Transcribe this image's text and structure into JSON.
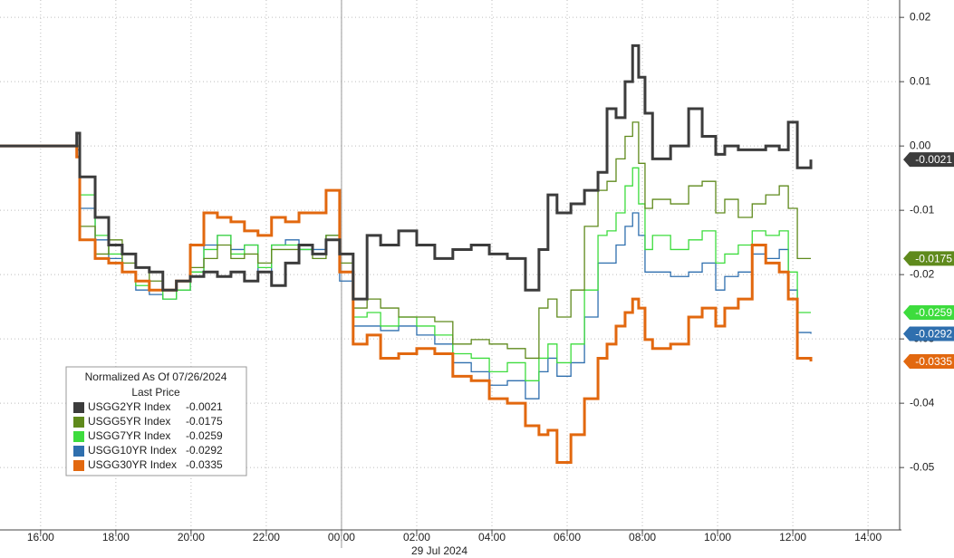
{
  "chart_data": {
    "type": "line",
    "legend_title": "Normalized As Of 07/26/2024",
    "legend_subtitle": "Last Price",
    "x_date_label": "29 Jul 2024",
    "x": [
      14.92,
      16.96,
      17.04,
      17.45,
      17.81,
      18.17,
      18.53,
      18.89,
      19.25,
      19.61,
      19.98,
      20.34,
      20.7,
      21.06,
      21.42,
      21.78,
      22.14,
      22.51,
      22.87,
      23.23,
      23.59,
      23.95,
      24.31,
      24.68,
      25.04,
      25.52,
      26.0,
      26.48,
      26.96,
      27.45,
      27.93,
      28.41,
      28.89,
      29.25,
      29.49,
      29.73,
      30.1,
      30.46,
      30.82,
      31.06,
      31.3,
      31.54,
      31.74,
      31.9,
      32.07,
      32.27,
      32.75,
      33.23,
      33.59,
      33.95,
      34.19,
      34.55,
      34.92,
      35.28,
      35.64,
      35.88,
      36.12,
      36.48
    ],
    "series": [
      {
        "name": "USGG2YR Index",
        "color": "#3c3c3c",
        "values": [
          0,
          0.002,
          -0.0048,
          -0.0111,
          -0.0154,
          -0.0168,
          -0.0189,
          -0.0196,
          -0.0224,
          -0.021,
          -0.0203,
          -0.0196,
          -0.0203,
          -0.0196,
          -0.021,
          -0.0196,
          -0.0217,
          -0.0182,
          -0.0154,
          -0.0168,
          -0.0146,
          -0.0168,
          -0.0238,
          -0.0139,
          -0.0154,
          -0.0132,
          -0.0154,
          -0.0175,
          -0.0161,
          -0.0154,
          -0.0168,
          -0.0175,
          -0.0224,
          -0.0161,
          -0.0076,
          -0.0104,
          -0.009,
          -0.0069,
          -0.0041,
          0.0058,
          0.0044,
          0.01,
          0.0156,
          0.0107,
          0.0051,
          -0.002,
          0,
          0.0058,
          0.0015,
          -0.0013,
          0,
          -0.0006,
          -0.0006,
          0,
          -0.0006,
          0.0037,
          -0.0034,
          -0.0021
        ]
      },
      {
        "name": "USGG5YR Index",
        "color": "#5f8a1c",
        "values": [
          0,
          0,
          -0.0125,
          -0.0168,
          -0.0146,
          -0.0182,
          -0.0189,
          -0.021,
          -0.0224,
          -0.021,
          -0.0189,
          -0.0175,
          -0.0154,
          -0.0175,
          -0.0168,
          -0.0182,
          -0.0161,
          -0.0161,
          -0.0154,
          -0.0175,
          -0.0139,
          -0.0182,
          -0.0252,
          -0.0238,
          -0.0252,
          -0.0266,
          -0.0266,
          -0.0273,
          -0.0308,
          -0.0301,
          -0.0308,
          -0.0315,
          -0.033,
          -0.0252,
          -0.0238,
          -0.0266,
          -0.0224,
          -0.0125,
          -0.0069,
          -0.0055,
          -0.002,
          0.0015,
          0.0037,
          -0.0027,
          -0.0097,
          -0.0083,
          -0.009,
          -0.0062,
          -0.0055,
          -0.0104,
          -0.0083,
          -0.0111,
          -0.009,
          -0.0076,
          -0.0062,
          -0.0097,
          -0.0175,
          -0.0175
        ]
      },
      {
        "name": "USGG7YR Index",
        "color": "#3ddc3d",
        "values": [
          0,
          0,
          -0.0076,
          -0.0139,
          -0.0168,
          -0.0196,
          -0.0217,
          -0.0224,
          -0.0238,
          -0.0224,
          -0.0196,
          -0.0161,
          -0.0139,
          -0.0168,
          -0.0154,
          -0.0189,
          -0.0154,
          -0.0154,
          -0.0161,
          -0.0168,
          -0.0139,
          -0.0196,
          -0.0266,
          -0.0259,
          -0.028,
          -0.0266,
          -0.028,
          -0.0294,
          -0.0323,
          -0.033,
          -0.0351,
          -0.0337,
          -0.0365,
          -0.033,
          -0.0308,
          -0.0337,
          -0.0308,
          -0.0224,
          -0.0139,
          -0.0132,
          -0.0104,
          -0.0062,
          -0.0034,
          -0.009,
          -0.0161,
          -0.0139,
          -0.0161,
          -0.0146,
          -0.0132,
          -0.0182,
          -0.0168,
          -0.0154,
          -0.0132,
          -0.0139,
          -0.0132,
          -0.0196,
          -0.0259,
          -0.0259
        ]
      },
      {
        "name": "USGG10YR Index",
        "color": "#2f6fae",
        "values": [
          0,
          -0.0006,
          -0.0097,
          -0.0146,
          -0.0175,
          -0.0196,
          -0.0224,
          -0.0231,
          -0.0238,
          -0.0224,
          -0.0196,
          -0.0154,
          -0.0139,
          -0.0161,
          -0.0154,
          -0.0196,
          -0.0154,
          -0.0146,
          -0.0161,
          -0.0161,
          -0.0139,
          -0.021,
          -0.028,
          -0.028,
          -0.0287,
          -0.028,
          -0.0294,
          -0.0308,
          -0.0337,
          -0.0351,
          -0.0372,
          -0.0365,
          -0.0393,
          -0.0351,
          -0.033,
          -0.0358,
          -0.0337,
          -0.0266,
          -0.0182,
          -0.0182,
          -0.0154,
          -0.0125,
          -0.0104,
          -0.0139,
          -0.0196,
          -0.0196,
          -0.0203,
          -0.0196,
          -0.0182,
          -0.0224,
          -0.0203,
          -0.0196,
          -0.0168,
          -0.0175,
          -0.0161,
          -0.0224,
          -0.029,
          -0.0292
        ]
      },
      {
        "name": "USGG30YR Index",
        "color": "#e2680f",
        "values": [
          0,
          -0.0017,
          -0.0146,
          -0.0175,
          -0.0182,
          -0.0196,
          -0.021,
          -0.0224,
          -0.0224,
          -0.021,
          -0.0154,
          -0.0104,
          -0.0111,
          -0.0118,
          -0.0132,
          -0.0139,
          -0.0111,
          -0.0118,
          -0.0104,
          -0.0104,
          -0.0069,
          -0.0196,
          -0.0308,
          -0.0294,
          -0.033,
          -0.0323,
          -0.0315,
          -0.0323,
          -0.0358,
          -0.0365,
          -0.0393,
          -0.04,
          -0.0435,
          -0.0449,
          -0.0442,
          -0.0492,
          -0.0449,
          -0.0393,
          -0.033,
          -0.0308,
          -0.028,
          -0.0259,
          -0.0238,
          -0.0252,
          -0.0301,
          -0.0315,
          -0.0308,
          -0.0266,
          -0.0252,
          -0.028,
          -0.0252,
          -0.0238,
          -0.0154,
          -0.0182,
          -0.0196,
          -0.0238,
          -0.033,
          -0.0335
        ]
      }
    ],
    "xlim": [
      14.92,
      38.84
    ],
    "xticks": [
      {
        "value": 16,
        "label": "16:00"
      },
      {
        "value": 18,
        "label": "18:00"
      },
      {
        "value": 20,
        "label": "20:00"
      },
      {
        "value": 22,
        "label": "22:00"
      },
      {
        "value": 24,
        "label": "00:00"
      },
      {
        "value": 26,
        "label": "02:00"
      },
      {
        "value": 28,
        "label": "04:00"
      },
      {
        "value": 30,
        "label": "06:00"
      },
      {
        "value": 32,
        "label": "08:00"
      },
      {
        "value": 34,
        "label": "10:00"
      },
      {
        "value": 36,
        "label": "12:00"
      },
      {
        "value": 38,
        "label": "14:00"
      }
    ],
    "ylim": [
      -0.0597,
      0.0227
    ],
    "yticks": [
      0.02,
      0.01,
      {
        "value": 0,
        "label": "0.00"
      },
      -0.01,
      -0.02,
      -0.03,
      -0.04,
      -0.05
    ],
    "grid": true,
    "legend_position": "lower left"
  }
}
